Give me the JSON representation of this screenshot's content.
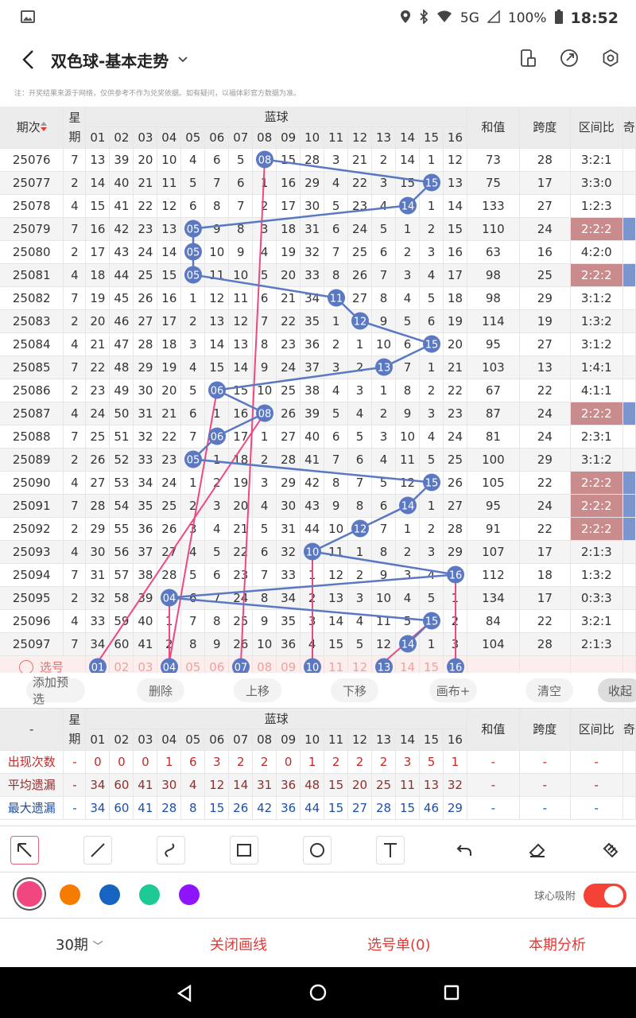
{
  "status_bar": {
    "network": "5G",
    "battery": "100%",
    "time": "18:52"
  },
  "header": {
    "title": "双色球-基本走势"
  },
  "disclaimer": "注：开奖结果来源于网络，仅供参考不作为兑奖依据。如有疑问，以福体彩官方数据为准。",
  "grid": {
    "col_period": "期次",
    "col_week": "星期",
    "col_blue": "蓝球",
    "col_sum": "和值",
    "col_span": "跨度",
    "col_zone": "区间比",
    "col_more": "奇",
    "nums": [
      "01",
      "02",
      "03",
      "04",
      "05",
      "06",
      "07",
      "08",
      "09",
      "10",
      "11",
      "12",
      "13",
      "14",
      "15",
      "16"
    ],
    "rows": [
      {
        "period": "25076",
        "week": "7",
        "cells": [
          "13",
          "39",
          "20",
          "10",
          "4",
          "6",
          "5",
          "08",
          "15",
          "28",
          "3",
          "21",
          "2",
          "14",
          "1",
          "12"
        ],
        "hit": 8,
        "sum": "73",
        "span": "28",
        "zone": "3:2:1",
        "zoneHl": false
      },
      {
        "period": "25077",
        "week": "2",
        "cells": [
          "14",
          "40",
          "21",
          "11",
          "5",
          "7",
          "6",
          "1",
          "16",
          "29",
          "4",
          "22",
          "3",
          "15",
          "15",
          "13"
        ],
        "hit": 15,
        "sum": "75",
        "span": "17",
        "zone": "3:3:0",
        "zoneHl": false
      },
      {
        "period": "25078",
        "week": "4",
        "cells": [
          "15",
          "41",
          "22",
          "12",
          "6",
          "8",
          "7",
          "2",
          "17",
          "30",
          "5",
          "23",
          "4",
          "14",
          "1",
          "14"
        ],
        "hit": 14,
        "sum": "133",
        "span": "27",
        "zone": "1:2:3",
        "zoneHl": false
      },
      {
        "period": "25079",
        "week": "7",
        "cells": [
          "16",
          "42",
          "23",
          "13",
          "05",
          "9",
          "8",
          "3",
          "18",
          "31",
          "6",
          "24",
          "5",
          "1",
          "2",
          "15"
        ],
        "hit": 5,
        "sum": "110",
        "span": "24",
        "zone": "2:2:2",
        "zoneHl": true
      },
      {
        "period": "25080",
        "week": "2",
        "cells": [
          "17",
          "43",
          "24",
          "14",
          "05",
          "10",
          "9",
          "4",
          "19",
          "32",
          "7",
          "25",
          "6",
          "2",
          "3",
          "16"
        ],
        "hit": 5,
        "sum": "63",
        "span": "16",
        "zone": "4:2:0",
        "zoneHl": false
      },
      {
        "period": "25081",
        "week": "4",
        "cells": [
          "18",
          "44",
          "25",
          "15",
          "05",
          "11",
          "10",
          "5",
          "20",
          "33",
          "8",
          "26",
          "7",
          "3",
          "4",
          "17"
        ],
        "hit": 5,
        "sum": "98",
        "span": "25",
        "zone": "2:2:2",
        "zoneHl": true
      },
      {
        "period": "25082",
        "week": "7",
        "cells": [
          "19",
          "45",
          "26",
          "16",
          "1",
          "12",
          "11",
          "6",
          "21",
          "34",
          "11",
          "27",
          "8",
          "4",
          "5",
          "18"
        ],
        "hit": 11,
        "sum": "98",
        "span": "29",
        "zone": "3:1:2",
        "zoneHl": false
      },
      {
        "period": "25083",
        "week": "2",
        "cells": [
          "20",
          "46",
          "27",
          "17",
          "2",
          "13",
          "12",
          "7",
          "22",
          "35",
          "1",
          "12",
          "9",
          "5",
          "6",
          "19"
        ],
        "hit": 12,
        "sum": "114",
        "span": "19",
        "zone": "1:3:2",
        "zoneHl": false
      },
      {
        "period": "25084",
        "week": "4",
        "cells": [
          "21",
          "47",
          "28",
          "18",
          "3",
          "14",
          "13",
          "8",
          "23",
          "36",
          "2",
          "1",
          "10",
          "6",
          "15",
          "20"
        ],
        "hit": 15,
        "sum": "95",
        "span": "27",
        "zone": "3:1:2",
        "zoneHl": false
      },
      {
        "period": "25085",
        "week": "7",
        "cells": [
          "22",
          "48",
          "29",
          "19",
          "4",
          "15",
          "14",
          "9",
          "24",
          "37",
          "3",
          "2",
          "13",
          "7",
          "1",
          "21"
        ],
        "hit": 13,
        "sum": "103",
        "span": "13",
        "zone": "1:4:1",
        "zoneHl": false
      },
      {
        "period": "25086",
        "week": "2",
        "cells": [
          "23",
          "49",
          "30",
          "20",
          "5",
          "06",
          "15",
          "10",
          "25",
          "38",
          "4",
          "3",
          "1",
          "8",
          "2",
          "22"
        ],
        "hit": 6,
        "sum": "67",
        "span": "22",
        "zone": "4:1:1",
        "zoneHl": false
      },
      {
        "period": "25087",
        "week": "4",
        "cells": [
          "24",
          "50",
          "31",
          "21",
          "6",
          "1",
          "16",
          "08",
          "26",
          "39",
          "5",
          "4",
          "2",
          "9",
          "3",
          "23"
        ],
        "hit": 8,
        "sum": "87",
        "span": "24",
        "zone": "2:2:2",
        "zoneHl": true
      },
      {
        "period": "25088",
        "week": "7",
        "cells": [
          "25",
          "51",
          "32",
          "22",
          "7",
          "06",
          "17",
          "1",
          "27",
          "40",
          "6",
          "5",
          "3",
          "10",
          "4",
          "24"
        ],
        "hit": 6,
        "sum": "81",
        "span": "24",
        "zone": "2:3:1",
        "zoneHl": false
      },
      {
        "period": "25089",
        "week": "2",
        "cells": [
          "26",
          "52",
          "33",
          "23",
          "05",
          "1",
          "18",
          "2",
          "28",
          "41",
          "7",
          "6",
          "4",
          "11",
          "5",
          "25"
        ],
        "hit": 5,
        "sum": "100",
        "span": "29",
        "zone": "3:1:2",
        "zoneHl": false
      },
      {
        "period": "25090",
        "week": "4",
        "cells": [
          "27",
          "53",
          "34",
          "24",
          "1",
          "2",
          "19",
          "3",
          "29",
          "42",
          "8",
          "7",
          "5",
          "12",
          "15",
          "26"
        ],
        "hit": 15,
        "sum": "105",
        "span": "22",
        "zone": "2:2:2",
        "zoneHl": true
      },
      {
        "period": "25091",
        "week": "7",
        "cells": [
          "28",
          "54",
          "35",
          "25",
          "2",
          "3",
          "20",
          "4",
          "30",
          "43",
          "9",
          "8",
          "6",
          "14",
          "1",
          "27"
        ],
        "hit": 14,
        "sum": "95",
        "span": "24",
        "zone": "2:2:2",
        "zoneHl": true
      },
      {
        "period": "25092",
        "week": "2",
        "cells": [
          "29",
          "55",
          "36",
          "26",
          "3",
          "4",
          "21",
          "5",
          "31",
          "44",
          "10",
          "12",
          "7",
          "1",
          "2",
          "28"
        ],
        "hit": 12,
        "sum": "91",
        "span": "22",
        "zone": "2:2:2",
        "zoneHl": true
      },
      {
        "period": "25093",
        "week": "4",
        "cells": [
          "30",
          "56",
          "37",
          "27",
          "4",
          "5",
          "22",
          "6",
          "32",
          "10",
          "11",
          "1",
          "8",
          "2",
          "3",
          "29"
        ],
        "hit": 10,
        "sum": "107",
        "span": "17",
        "zone": "2:1:3",
        "zoneHl": false
      },
      {
        "period": "25094",
        "week": "7",
        "cells": [
          "31",
          "57",
          "38",
          "28",
          "5",
          "6",
          "23",
          "7",
          "33",
          "1",
          "12",
          "2",
          "9",
          "3",
          "4",
          "16"
        ],
        "hit": 16,
        "sum": "112",
        "span": "18",
        "zone": "1:3:2",
        "zoneHl": false
      },
      {
        "period": "25095",
        "week": "2",
        "cells": [
          "32",
          "58",
          "39",
          "04",
          "6",
          "7",
          "24",
          "8",
          "34",
          "2",
          "13",
          "3",
          "10",
          "4",
          "5",
          "1"
        ],
        "hit": 4,
        "sum": "134",
        "span": "17",
        "zone": "0:3:3",
        "zoneHl": false
      },
      {
        "period": "25096",
        "week": "4",
        "cells": [
          "33",
          "59",
          "40",
          "1",
          "7",
          "8",
          "25",
          "9",
          "35",
          "3",
          "14",
          "4",
          "11",
          "5",
          "15",
          "2"
        ],
        "hit": 15,
        "sum": "84",
        "span": "22",
        "zone": "3:2:1",
        "zoneHl": false
      },
      {
        "period": "25097",
        "week": "7",
        "cells": [
          "34",
          "60",
          "41",
          "2",
          "8",
          "9",
          "26",
          "10",
          "36",
          "4",
          "15",
          "5",
          "12",
          "14",
          "1",
          "3"
        ],
        "hit": 14,
        "sum": "104",
        "span": "28",
        "zone": "2:1:3",
        "zoneHl": false
      }
    ],
    "pick_label": "选号",
    "pick_selected": [
      1,
      4,
      7,
      10,
      13,
      16
    ]
  },
  "tools": {
    "add": "添加预选",
    "del": "删除",
    "up": "上移",
    "down": "下移",
    "canvas": "画布+",
    "clear": "清空",
    "fold": "收起"
  },
  "stats": {
    "dash": "-",
    "rows": [
      {
        "label": "出现次数",
        "color": "#c62828",
        "values": [
          "0",
          "0",
          "0",
          "1",
          "6",
          "3",
          "2",
          "2",
          "0",
          "1",
          "2",
          "2",
          "2",
          "3",
          "5",
          "1"
        ]
      },
      {
        "label": "平均遗漏",
        "color": "#8d2f2f",
        "values": [
          "34",
          "60",
          "41",
          "30",
          "4",
          "12",
          "14",
          "31",
          "36",
          "48",
          "15",
          "20",
          "25",
          "11",
          "13",
          "32"
        ]
      },
      {
        "label": "最大遗漏",
        "color": "#1e4fa3",
        "values": [
          "34",
          "60",
          "41",
          "28",
          "8",
          "15",
          "26",
          "42",
          "36",
          "44",
          "15",
          "27",
          "28",
          "15",
          "46",
          "29"
        ]
      }
    ]
  },
  "draw": {
    "toggle_label": "球心吸附",
    "colors": [
      "#f0477f",
      "#f57c00",
      "#1565c0",
      "#1dc995",
      "#9013fe"
    ]
  },
  "bottom": {
    "periods": "30期",
    "close_lines": "关闭画线",
    "pick_list": "选号单(0)",
    "analysis": "本期分析"
  }
}
